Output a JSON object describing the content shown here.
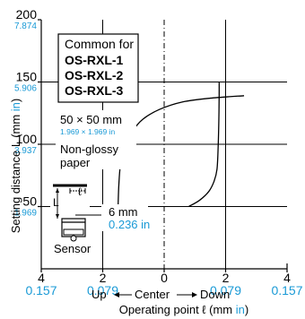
{
  "chart_data": {
    "type": "line",
    "xlabel_prefix": "Operating point ℓ (mm ",
    "xlabel_unit": "in",
    "xlabel_suffix": ")",
    "ylabel_prefix": "Setting distance L (mm ",
    "ylabel_unit": "in",
    "ylabel_suffix": ")",
    "x_axis_left_word": "Up",
    "x_axis_center_word": "Center",
    "x_axis_right_word": "Down",
    "xlim": [
      -4,
      4
    ],
    "ylim": [
      0,
      200
    ],
    "x_ticks": [
      {
        "value": -4,
        "mm": "4",
        "inch": "0.157"
      },
      {
        "value": -2,
        "mm": "2",
        "inch": "0.079"
      },
      {
        "value": 0,
        "mm": "0",
        "inch": ""
      },
      {
        "value": 2,
        "mm": "2",
        "inch": "0.079"
      },
      {
        "value": 4,
        "mm": "4",
        "inch": "0.157"
      }
    ],
    "y_ticks": [
      {
        "value": 50,
        "mm": "50",
        "inch": "1.969"
      },
      {
        "value": 100,
        "mm": "100",
        "inch": "3.937"
      },
      {
        "value": 150,
        "mm": "150",
        "inch": "5.906"
      },
      {
        "value": 200,
        "mm": "200",
        "inch": "7.874"
      }
    ],
    "grid": true,
    "series": [
      {
        "values": [
          {
            "x": -1.5,
            "y": 50
          },
          {
            "x": -1.48,
            "y": 65
          },
          {
            "x": -1.44,
            "y": 80
          },
          {
            "x": -1.38,
            "y": 90
          },
          {
            "x": -1.26,
            "y": 100
          },
          {
            "x": -1.05,
            "y": 110
          },
          {
            "x": -0.7,
            "y": 120
          },
          {
            "x": -0.15,
            "y": 128
          },
          {
            "x": 0.6,
            "y": 134
          },
          {
            "x": 1.5,
            "y": 137
          },
          {
            "x": 2.6,
            "y": 139
          }
        ]
      },
      {
        "values": [
          {
            "x": 0.8,
            "y": 50
          },
          {
            "x": 1.15,
            "y": 55
          },
          {
            "x": 1.45,
            "y": 62
          },
          {
            "x": 1.62,
            "y": 70
          },
          {
            "x": 1.72,
            "y": 80
          },
          {
            "x": 1.76,
            "y": 100
          },
          {
            "x": 1.78,
            "y": 120
          },
          {
            "x": 1.79,
            "y": 140
          },
          {
            "x": 1.79,
            "y": 150
          }
        ]
      }
    ],
    "legend": {
      "heading": "Common for",
      "items": [
        "OS-RXL-1",
        "OS-RXL-2",
        "OS-RXL-3"
      ]
    },
    "annotations": {
      "target_size": "50 × 50 mm",
      "target_size_inch": "1.969 × 1.969 in",
      "target_material_line1": "Non-glossy",
      "target_material_line2": "paper",
      "L_symbol": "L",
      "ell_symbol": "ℓ",
      "gap_mm": "6 mm",
      "gap_inch": "0.236 in",
      "sensor_label": "Sensor"
    }
  },
  "colors": {
    "axis": "#000000",
    "curve": "#000000",
    "inch": "#1a9ad6"
  }
}
